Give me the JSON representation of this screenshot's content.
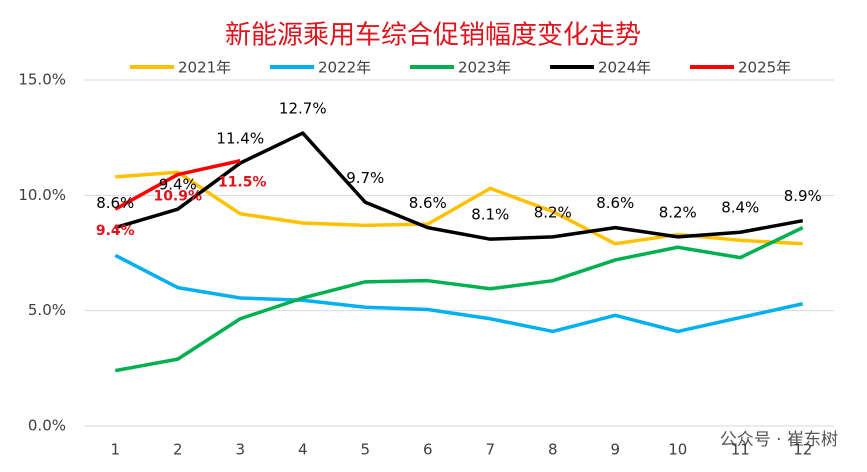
{
  "chart_data": {
    "type": "line",
    "title": "新能源乘用车综合促销幅度变化走势",
    "categories": [
      "1",
      "2",
      "3",
      "4",
      "5",
      "6",
      "7",
      "8",
      "9",
      "10",
      "11",
      "12"
    ],
    "ylim": [
      0,
      15
    ],
    "yticks": [
      {
        "value": 0,
        "label": "0.0%"
      },
      {
        "value": 5,
        "label": "5.0%"
      },
      {
        "value": 10,
        "label": "10.0%"
      },
      {
        "value": 15,
        "label": "15.0%"
      }
    ],
    "grid": true,
    "series": [
      {
        "name": "2021年",
        "color": "#ffc000",
        "values": [
          10.8,
          11.0,
          9.2,
          8.8,
          8.7,
          8.75,
          10.3,
          9.3,
          7.9,
          8.3,
          8.05,
          7.9
        ]
      },
      {
        "name": "2022年",
        "color": "#00b0f0",
        "values": [
          7.4,
          6.0,
          5.55,
          5.45,
          5.15,
          5.05,
          4.65,
          4.1,
          4.8,
          4.1,
          4.7,
          5.3
        ]
      },
      {
        "name": "2023年",
        "color": "#00b050",
        "values": [
          2.4,
          2.9,
          4.65,
          5.55,
          6.25,
          6.3,
          5.95,
          6.3,
          7.2,
          7.75,
          7.3,
          8.6
        ]
      },
      {
        "name": "2024年",
        "color": "#000000",
        "values": [
          8.6,
          9.4,
          11.4,
          12.7,
          9.7,
          8.6,
          8.1,
          8.2,
          8.6,
          8.2,
          8.4,
          8.9
        ],
        "value_labels": [
          "8.6%",
          "9.4%",
          "11.4%",
          "12.7%",
          "9.7%",
          "8.6%",
          "8.1%",
          "8.2%",
          "8.6%",
          "8.2%",
          "8.4%",
          "8.9%"
        ]
      },
      {
        "name": "2025年",
        "color": "#ff0000",
        "values": [
          9.4,
          10.9,
          11.5,
          null,
          null,
          null,
          null,
          null,
          null,
          null,
          null,
          null
        ],
        "value_labels": [
          "9.4%",
          "10.9%",
          "11.5%",
          null,
          null,
          null,
          null,
          null,
          null,
          null,
          null,
          null
        ]
      }
    ],
    "watermark": "公众号 · 崔东树"
  }
}
